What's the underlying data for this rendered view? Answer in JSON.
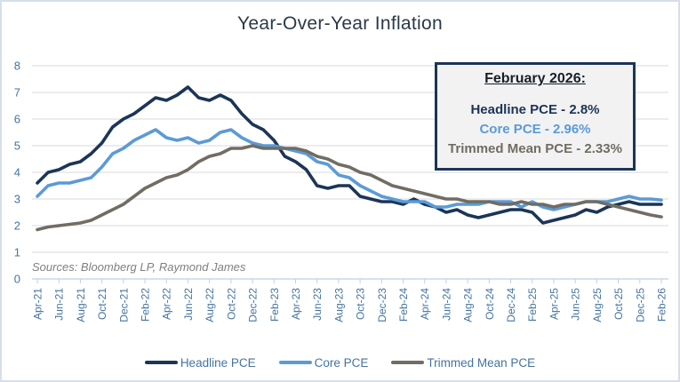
{
  "sources": "Sources: Bloomberg LP, Raymond James",
  "annotation": {
    "heading": "February 2026:",
    "lines": [
      {
        "text": "Headline PCE - 2.8%",
        "color": "#1c3557"
      },
      {
        "text": "Core PCE - 2.96%",
        "color": "#5b9bd5"
      },
      {
        "text": "Trimmed Mean PCE - 2.33%",
        "color": "#716d63"
      }
    ]
  },
  "chart_data": {
    "type": "line",
    "title": "Year-Over-Year Inflation",
    "xlabel": "",
    "ylabel": "",
    "ylim": [
      0,
      8
    ],
    "y_ticks": [
      0,
      1,
      2,
      3,
      4,
      5,
      6,
      7,
      8
    ],
    "grid": "horizontal",
    "legend_position": "bottom",
    "x_tick_step": 2,
    "months": [
      "Apr-21",
      "May-21",
      "Jun-21",
      "Jul-21",
      "Aug-21",
      "Sep-21",
      "Oct-21",
      "Nov-21",
      "Dec-21",
      "Jan-22",
      "Feb-22",
      "Mar-22",
      "Apr-22",
      "May-22",
      "Jun-22",
      "Jul-22",
      "Aug-22",
      "Sep-22",
      "Oct-22",
      "Nov-22",
      "Dec-22",
      "Jan-23",
      "Feb-23",
      "Mar-23",
      "Apr-23",
      "May-23",
      "Jun-23",
      "Jul-23",
      "Aug-23",
      "Sep-23",
      "Oct-23",
      "Nov-23",
      "Dec-23",
      "Jan-24",
      "Feb-24",
      "Mar-24",
      "Apr-24",
      "May-24",
      "Jun-24",
      "Jul-24",
      "Aug-24",
      "Sep-24",
      "Oct-24",
      "Nov-24",
      "Dec-24",
      "Jan-25",
      "Feb-25",
      "Mar-25",
      "Apr-25",
      "May-25",
      "Jun-25",
      "Jul-25",
      "Aug-25",
      "Sep-25",
      "Oct-25",
      "Nov-25",
      "Dec-25",
      "Jan-26",
      "Feb-26"
    ],
    "x_tick_labels": [
      "Apr-21",
      "Jun-21",
      "Aug-21",
      "Oct-21",
      "Dec-21",
      "Feb-22",
      "Apr-22",
      "Jun-22",
      "Aug-22",
      "Oct-22",
      "Dec-22",
      "Feb-23",
      "Apr-23",
      "Jun-23",
      "Aug-23",
      "Oct-23",
      "Dec-23",
      "Feb-24",
      "Apr-24",
      "Jun-24",
      "Aug-24",
      "Oct-24",
      "Dec-24",
      "Feb-25",
      "Apr-25",
      "Jun-25",
      "Aug-25",
      "Oct-25",
      "Dec-25",
      "Feb-26"
    ],
    "series": [
      {
        "name": "Headline PCE",
        "color": "#1c3557",
        "values": [
          3.6,
          4.0,
          4.1,
          4.3,
          4.4,
          4.7,
          5.1,
          5.7,
          6.0,
          6.2,
          6.5,
          6.8,
          6.7,
          6.9,
          7.2,
          6.8,
          6.7,
          6.9,
          6.7,
          6.2,
          5.8,
          5.6,
          5.2,
          4.6,
          4.4,
          4.1,
          3.5,
          3.4,
          3.5,
          3.5,
          3.1,
          3.0,
          2.9,
          2.9,
          2.8,
          3.0,
          2.8,
          2.7,
          2.5,
          2.6,
          2.4,
          2.3,
          2.4,
          2.5,
          2.6,
          2.6,
          2.5,
          2.1,
          2.2,
          2.3,
          2.4,
          2.6,
          2.5,
          2.7,
          2.8,
          2.9,
          2.8,
          2.8,
          2.8
        ]
      },
      {
        "name": "Core PCE",
        "color": "#5b9bd5",
        "values": [
          3.1,
          3.5,
          3.6,
          3.6,
          3.7,
          3.8,
          4.2,
          4.7,
          4.9,
          5.2,
          5.4,
          5.6,
          5.3,
          5.2,
          5.3,
          5.1,
          5.2,
          5.5,
          5.6,
          5.3,
          5.1,
          5.0,
          5.0,
          4.9,
          4.8,
          4.7,
          4.4,
          4.3,
          3.9,
          3.8,
          3.5,
          3.3,
          3.1,
          3.0,
          2.9,
          2.9,
          2.9,
          2.7,
          2.7,
          2.8,
          2.8,
          2.8,
          2.9,
          2.9,
          2.9,
          2.7,
          2.9,
          2.7,
          2.6,
          2.7,
          2.8,
          2.9,
          2.9,
          2.9,
          3.0,
          3.1,
          3.0,
          3.0,
          2.96
        ]
      },
      {
        "name": "Trimmed Mean PCE",
        "color": "#716d63",
        "values": [
          1.85,
          1.95,
          2.0,
          2.05,
          2.1,
          2.2,
          2.4,
          2.6,
          2.8,
          3.1,
          3.4,
          3.6,
          3.8,
          3.9,
          4.1,
          4.4,
          4.6,
          4.7,
          4.9,
          4.9,
          5.0,
          4.9,
          4.9,
          4.9,
          4.9,
          4.8,
          4.6,
          4.5,
          4.3,
          4.2,
          4.0,
          3.9,
          3.7,
          3.5,
          3.4,
          3.3,
          3.2,
          3.1,
          3.0,
          3.0,
          2.9,
          2.9,
          2.9,
          2.8,
          2.8,
          2.9,
          2.8,
          2.8,
          2.7,
          2.8,
          2.8,
          2.9,
          2.9,
          2.8,
          2.7,
          2.6,
          2.5,
          2.4,
          2.33
        ]
      }
    ],
    "axis_text_color": "#44749e",
    "gridline_color": "#d9d9d9",
    "axis_line_color": "#c3cfdb"
  }
}
